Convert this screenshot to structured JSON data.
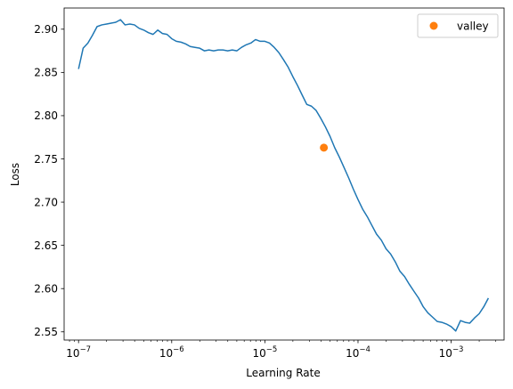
{
  "chart_data": {
    "type": "line",
    "title": "",
    "xlabel": "Learning Rate",
    "ylabel": "Loss",
    "xscale": "log",
    "xlim": [
      7e-08,
      0.0037
    ],
    "ylim": [
      2.5405,
      2.9245
    ],
    "x_ticks": [
      1e-07,
      1e-06,
      1e-05,
      0.0001,
      0.001
    ],
    "x_tick_labels": [
      {
        "base": "10",
        "exp": "−7"
      },
      {
        "base": "10",
        "exp": "−6"
      },
      {
        "base": "10",
        "exp": "−5"
      },
      {
        "base": "10",
        "exp": "−4"
      },
      {
        "base": "10",
        "exp": "−3"
      }
    ],
    "y_ticks": [
      2.55,
      2.6,
      2.65,
      2.7,
      2.75,
      2.8,
      2.85,
      2.9
    ],
    "y_tick_labels": [
      "2.55",
      "2.60",
      "2.65",
      "2.70",
      "2.75",
      "2.80",
      "2.85",
      "2.90"
    ],
    "grid": false,
    "legend_position": "top-right",
    "series": [
      {
        "name": "",
        "kind": "line",
        "color": "#1f77b4",
        "x": [
          1e-07,
          1.12e-07,
          1.26e-07,
          1.41e-07,
          1.58e-07,
          1.78e-07,
          2e-07,
          2.24e-07,
          2.51e-07,
          2.82e-07,
          3.16e-07,
          3.55e-07,
          3.98e-07,
          4.47e-07,
          5.01e-07,
          5.62e-07,
          6.31e-07,
          7.08e-07,
          7.94e-07,
          8.91e-07,
          1e-06,
          1.12e-06,
          1.26e-06,
          1.41e-06,
          1.58e-06,
          1.78e-06,
          2e-06,
          2.24e-06,
          2.51e-06,
          2.82e-06,
          3.16e-06,
          3.55e-06,
          3.98e-06,
          4.47e-06,
          5.01e-06,
          5.62e-06,
          6.31e-06,
          7.08e-06,
          7.94e-06,
          8.91e-06,
          1e-05,
          1.12e-05,
          1.26e-05,
          1.41e-05,
          1.58e-05,
          1.78e-05,
          2e-05,
          2.24e-05,
          2.51e-05,
          2.82e-05,
          3.16e-05,
          3.55e-05,
          3.98e-05,
          4.47e-05,
          5.01e-05,
          5.62e-05,
          6.31e-05,
          7.08e-05,
          7.94e-05,
          8.91e-05,
          0.0001,
          0.000112,
          0.000126,
          0.000141,
          0.000158,
          0.000178,
          0.0002,
          0.000224,
          0.000251,
          0.000282,
          0.000316,
          0.000355,
          0.000398,
          0.000447,
          0.000501,
          0.000562,
          0.000631,
          0.000708,
          0.000794,
          0.000891,
          0.001,
          0.00112,
          0.00126,
          0.00141,
          0.00158,
          0.00178,
          0.002,
          0.00224,
          0.00251
        ],
        "y": [
          2.854,
          2.878,
          2.884,
          2.893,
          2.903,
          2.905,
          2.906,
          2.907,
          2.908,
          2.911,
          2.905,
          2.906,
          2.905,
          2.901,
          2.899,
          2.896,
          2.894,
          2.899,
          2.895,
          2.894,
          2.889,
          2.886,
          2.885,
          2.883,
          2.88,
          2.879,
          2.878,
          2.875,
          2.876,
          2.875,
          2.876,
          2.876,
          2.875,
          2.876,
          2.875,
          2.879,
          2.882,
          2.884,
          2.888,
          2.886,
          2.886,
          2.884,
          2.879,
          2.873,
          2.865,
          2.856,
          2.845,
          2.835,
          2.824,
          2.813,
          2.811,
          2.806,
          2.797,
          2.787,
          2.776,
          2.763,
          2.752,
          2.74,
          2.728,
          2.715,
          2.703,
          2.692,
          2.683,
          2.673,
          2.663,
          2.656,
          2.646,
          2.64,
          2.631,
          2.62,
          2.614,
          2.605,
          2.597,
          2.589,
          2.579,
          2.572,
          2.567,
          2.562,
          2.561,
          2.559,
          2.556,
          2.551,
          2.563,
          2.561,
          2.56,
          2.566,
          2.571,
          2.579,
          2.589
        ]
      },
      {
        "name": "valley",
        "kind": "marker",
        "color": "#ff7f0e",
        "x": [
          4.3e-05
        ],
        "y": [
          2.763
        ]
      }
    ]
  }
}
